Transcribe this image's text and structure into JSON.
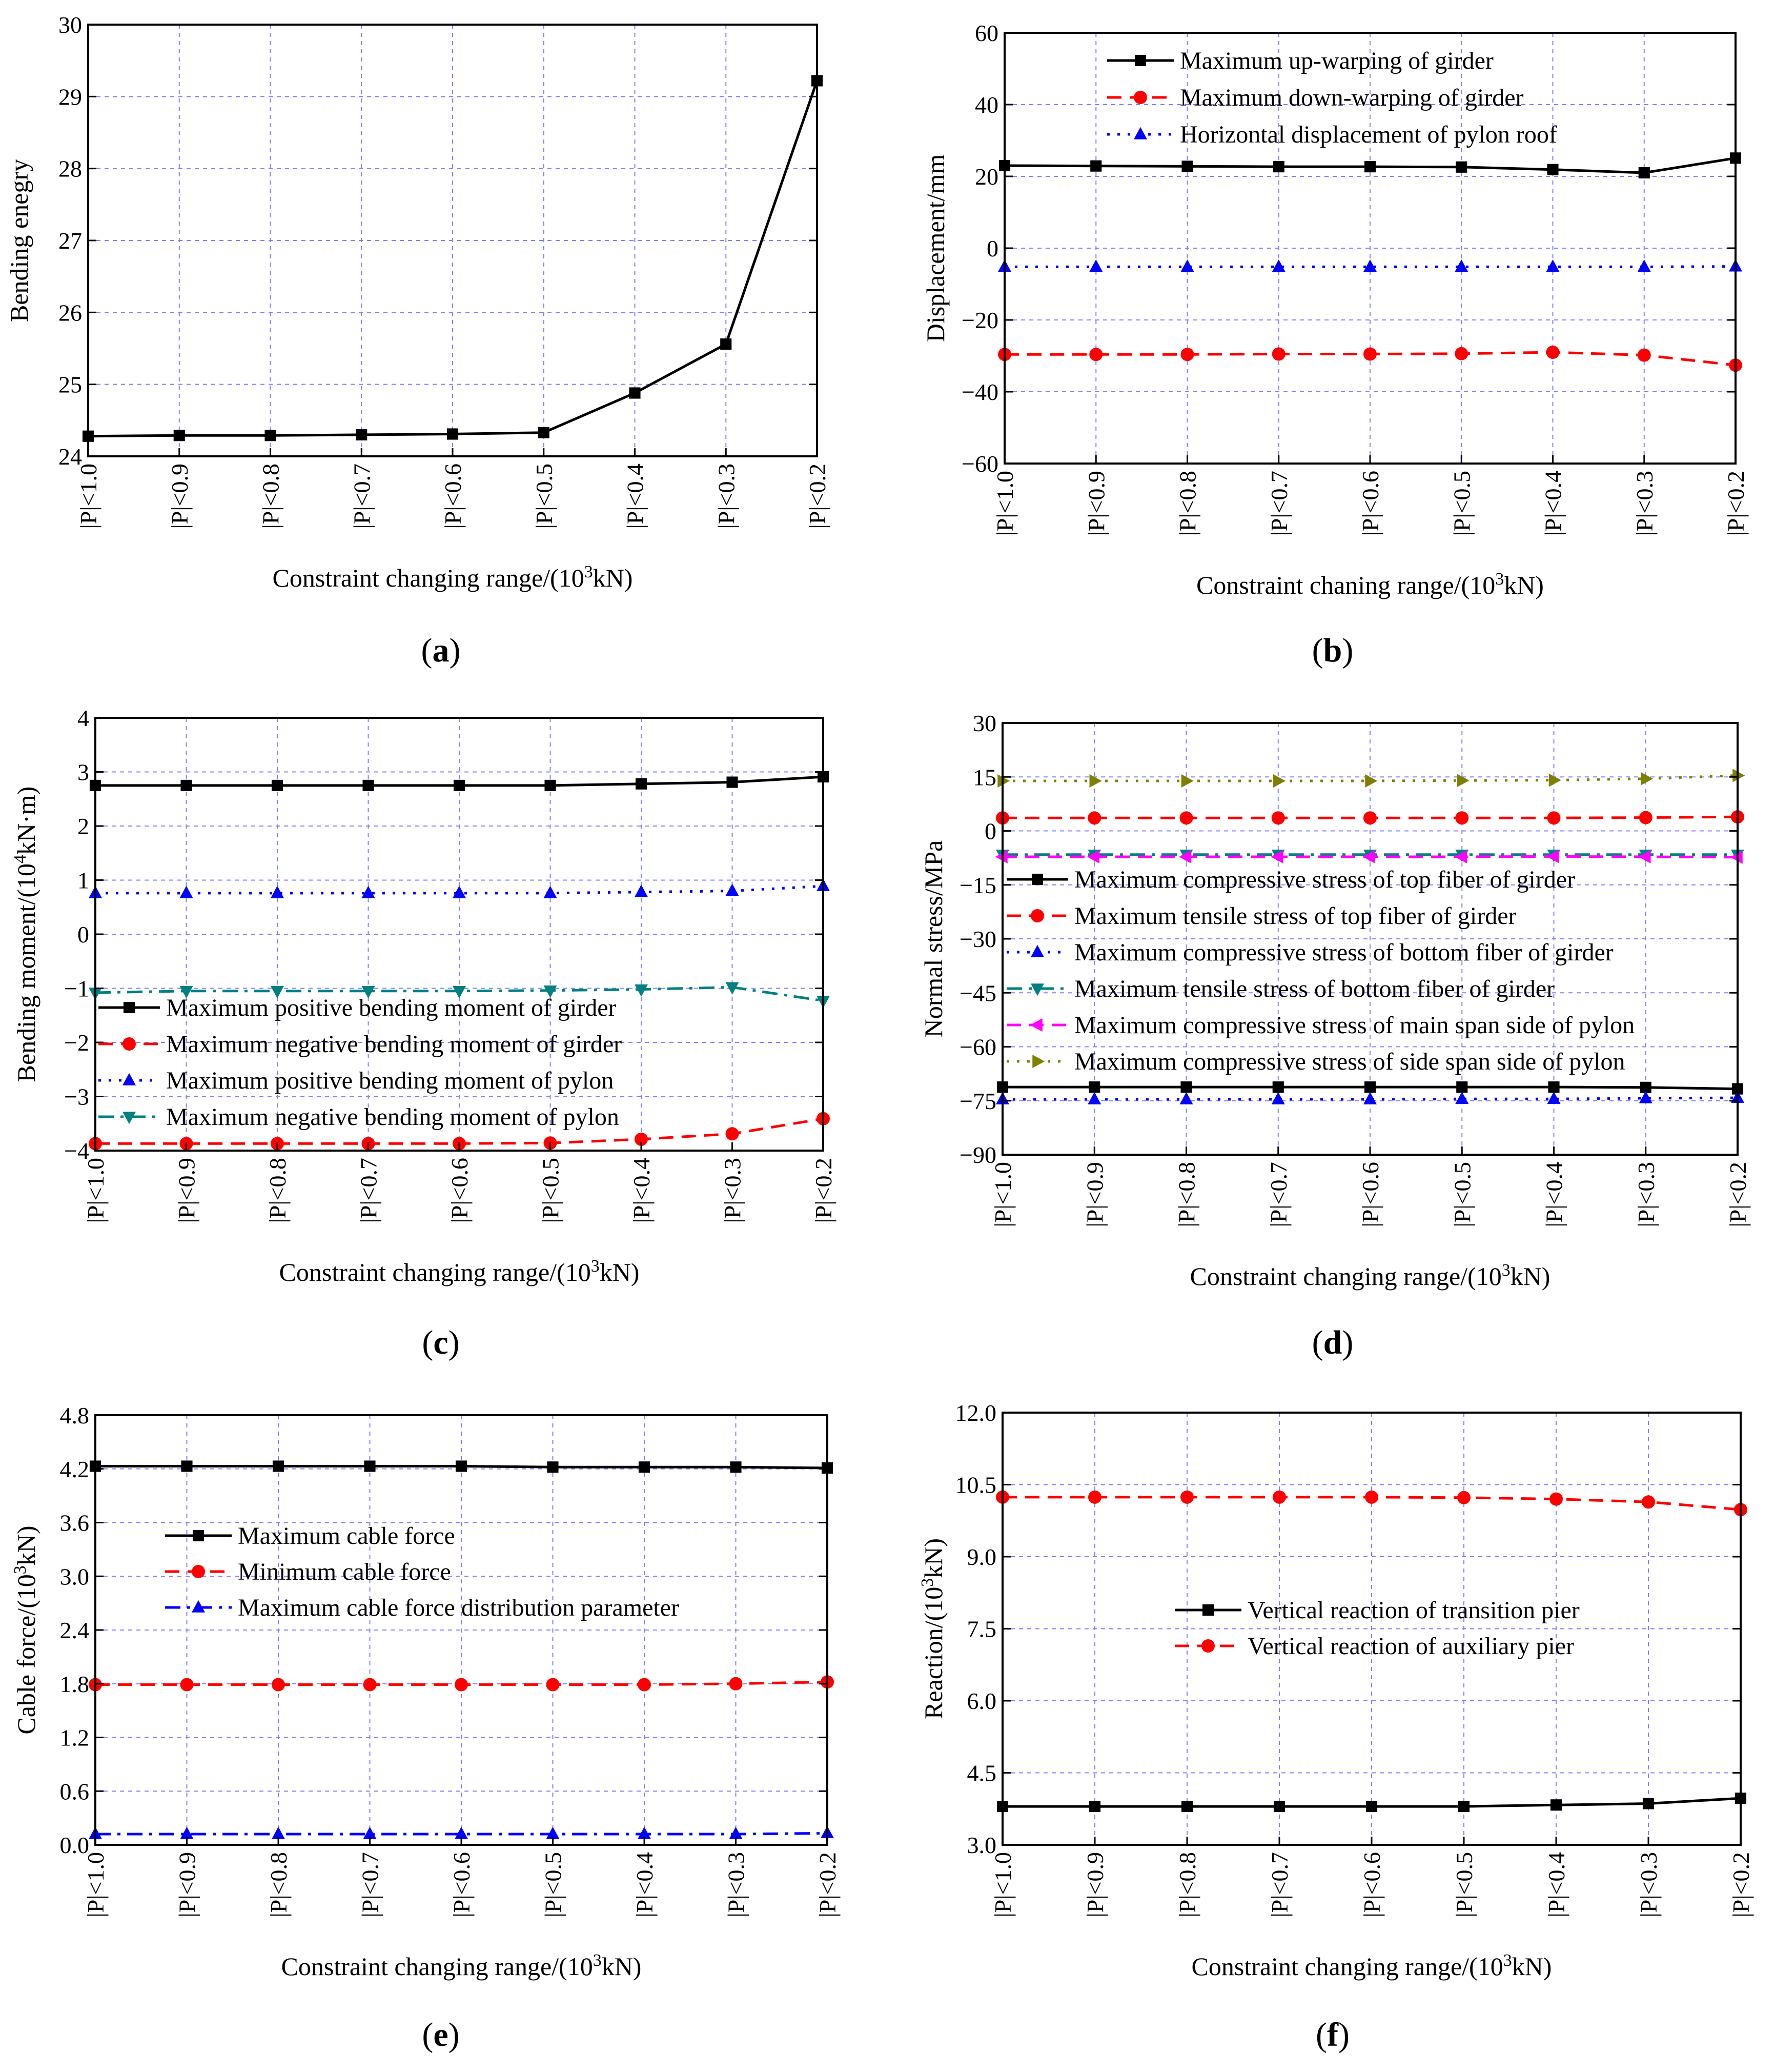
{
  "chart_data": [
    {
      "id": "a",
      "type": "line",
      "panel_label": "(a)",
      "categories": [
        "|P|<1.0",
        "|P|<0.9",
        "|P|<0.8",
        "|P|<0.7",
        "|P|<0.6",
        "|P|<0.5",
        "|P|<0.4",
        "|P|<0.3",
        "|P|<0.2"
      ],
      "xlabel": "Constraint changing range/(10³kN)",
      "ylabel": "Bending enegry",
      "ylim": [
        24,
        30
      ],
      "yticks": [
        24,
        25,
        26,
        27,
        28,
        29,
        30
      ],
      "ytick_labels": [
        "24",
        "25",
        "26",
        "27",
        "28",
        "29",
        "30"
      ],
      "grid": true,
      "legend_position": "none",
      "series": [
        {
          "name": "",
          "color": "#000000",
          "dash": "solid",
          "marker": "square",
          "values": [
            24.28,
            24.29,
            24.29,
            24.3,
            24.31,
            24.33,
            24.88,
            25.56,
            29.22
          ]
        }
      ]
    },
    {
      "id": "b",
      "type": "line",
      "panel_label": "(b)",
      "categories": [
        "|P|<1.0",
        "|P|<0.9",
        "|P|<0.8",
        "|P|<0.7",
        "|P|<0.6",
        "|P|<0.5",
        "|P|<0.4",
        "|P|<0.3",
        "|P|<0.2"
      ],
      "xlabel": "Constraint chaning range/(10³kN)",
      "ylabel": "Displacement/mm",
      "ylim": [
        -60,
        60
      ],
      "yticks": [
        -60,
        -40,
        -20,
        0,
        20,
        40,
        60
      ],
      "ytick_labels": [
        "−60",
        "−40",
        "−20",
        "0",
        "20",
        "40",
        "60"
      ],
      "grid": true,
      "legend_position": "top",
      "series": [
        {
          "name": "Maximum up-warping of girder",
          "color": "#000000",
          "dash": "solid",
          "marker": "square",
          "values": [
            23.0,
            22.9,
            22.8,
            22.7,
            22.7,
            22.6,
            21.9,
            21.0,
            25.1
          ]
        },
        {
          "name": "Maximum down-warping of girder",
          "color": "#ff0000",
          "dash": "dash",
          "marker": "circle",
          "values": [
            -29.6,
            -29.6,
            -29.6,
            -29.5,
            -29.5,
            -29.4,
            -29.0,
            -29.8,
            -32.6
          ]
        },
        {
          "name": "Horizontal displacement of pylon roof",
          "color": "#0000ff",
          "dash": "dot",
          "marker": "triangle",
          "values": [
            -5.2,
            -5.2,
            -5.2,
            -5.2,
            -5.2,
            -5.2,
            -5.2,
            -5.2,
            -5.1
          ]
        }
      ]
    },
    {
      "id": "c",
      "type": "line",
      "panel_label": "(c)",
      "categories": [
        "|P|<1.0",
        "|P|<0.9",
        "|P|<0.8",
        "|P|<0.7",
        "|P|<0.6",
        "|P|<0.5",
        "|P|<0.4",
        "|P|<0.3",
        "|P|<0.2"
      ],
      "xlabel": "Constraint changing range/(10³kN)",
      "ylabel": "Bending moment/(10⁴kN·m)",
      "ylim": [
        -4,
        4
      ],
      "yticks": [
        -4,
        -3,
        -2,
        -1,
        0,
        1,
        2,
        3,
        4
      ],
      "ytick_labels": [
        "−4",
        "−3",
        "−2",
        "−1",
        "0",
        "1",
        "2",
        "3",
        "4"
      ],
      "grid": true,
      "legend_position": "bottom-left",
      "series": [
        {
          "name": "Maximum positive bending moment of girder",
          "color": "#000000",
          "dash": "solid",
          "marker": "square",
          "values": [
            2.75,
            2.75,
            2.75,
            2.75,
            2.75,
            2.75,
            2.78,
            2.81,
            2.91
          ]
        },
        {
          "name": "Maximum negative bending moment of girder",
          "color": "#ff0000",
          "dash": "dash",
          "marker": "circle",
          "values": [
            -3.87,
            -3.87,
            -3.87,
            -3.87,
            -3.87,
            -3.86,
            -3.79,
            -3.69,
            -3.41
          ]
        },
        {
          "name": "Maximum positive bending moment of pylon",
          "color": "#0000ff",
          "dash": "dot",
          "marker": "triangle",
          "values": [
            0.76,
            0.76,
            0.76,
            0.76,
            0.76,
            0.76,
            0.78,
            0.8,
            0.89
          ]
        },
        {
          "name": "Maximum negative bending moment of pylon",
          "color": "#008080",
          "dash": "dashdot",
          "marker": "triangle-down",
          "values": [
            -1.08,
            -1.05,
            -1.05,
            -1.05,
            -1.05,
            -1.04,
            -1.02,
            -0.98,
            -1.23
          ]
        }
      ]
    },
    {
      "id": "d",
      "type": "line",
      "panel_label": "(d)",
      "categories": [
        "|P|<1.0",
        "|P|<0.9",
        "|P|<0.8",
        "|P|<0.7",
        "|P|<0.6",
        "|P|<0.5",
        "|P|<0.4",
        "|P|<0.3",
        "|P|<0.2"
      ],
      "xlabel": "Constraint changing range/(10³kN)",
      "ylabel": "Normal stress/MPa",
      "ylim": [
        -90,
        30
      ],
      "yticks": [
        -90,
        -75,
        -60,
        -45,
        -30,
        -15,
        0,
        15,
        30
      ],
      "ytick_labels": [
        "−90",
        "−75",
        "−60",
        "−45",
        "−30",
        "−15",
        "0",
        "15",
        "30"
      ],
      "grid": true,
      "legend_position": "center",
      "series": [
        {
          "name": "Maximum compressive stress of top fiber of girder",
          "color": "#000000",
          "dash": "solid",
          "marker": "square",
          "values": [
            -71.2,
            -71.2,
            -71.2,
            -71.2,
            -71.2,
            -71.2,
            -71.2,
            -71.3,
            -71.7
          ]
        },
        {
          "name": "Maximum tensile stress of top fiber of girder",
          "color": "#ff0000",
          "dash": "dash",
          "marker": "circle",
          "values": [
            3.6,
            3.6,
            3.6,
            3.6,
            3.6,
            3.6,
            3.6,
            3.7,
            3.9
          ]
        },
        {
          "name": "Maximum compressive stress of bottom fiber of girder",
          "color": "#0000ff",
          "dash": "dot",
          "marker": "triangle",
          "values": [
            -74.6,
            -74.6,
            -74.6,
            -74.6,
            -74.6,
            -74.5,
            -74.5,
            -74.3,
            -74.2
          ]
        },
        {
          "name": "Maximum tensile stress of bottom fiber of girder",
          "color": "#008080",
          "dash": "dashdot",
          "marker": "triangle-down",
          "values": [
            -6.6,
            -6.6,
            -6.6,
            -6.6,
            -6.6,
            -6.6,
            -6.6,
            -6.6,
            -6.6
          ]
        },
        {
          "name": "Maximum compressive stress of main span side of pylon",
          "color": "#ff00ff",
          "dash": "dash",
          "marker": "triangle-left",
          "values": [
            -7.2,
            -7.2,
            -7.2,
            -7.2,
            -7.2,
            -7.2,
            -7.1,
            -7.2,
            -7.3
          ]
        },
        {
          "name": "Maximum compressive stress of side span side of pylon",
          "color": "#808000",
          "dash": "dot",
          "marker": "triangle-right",
          "values": [
            13.9,
            13.9,
            13.9,
            13.9,
            13.9,
            14.0,
            14.1,
            14.5,
            15.4
          ]
        }
      ]
    },
    {
      "id": "e",
      "type": "line",
      "panel_label": "(e)",
      "categories": [
        "|P|<1.0",
        "|P|<0.9",
        "|P|<0.8",
        "|P|<0.7",
        "|P|<0.6",
        "|P|<0.5",
        "|P|<0.4",
        "|P|<0.3",
        "|P|<0.2"
      ],
      "xlabel": "Constraint changing range/(10³kN)",
      "ylabel": "Cable force/(10³kN)",
      "ylim": [
        0,
        4.8
      ],
      "yticks": [
        0,
        0.6,
        1.2,
        1.8,
        2.4,
        3.0,
        3.6,
        4.2,
        4.8
      ],
      "ytick_labels": [
        "0.0",
        "0.6",
        "1.2",
        "1.8",
        "2.4",
        "3.0",
        "3.6",
        "4.2",
        "4.8"
      ],
      "grid": true,
      "legend_position": "center-left",
      "series": [
        {
          "name": "Maximum cable force",
          "color": "#000000",
          "dash": "solid",
          "marker": "square",
          "values": [
            4.23,
            4.23,
            4.23,
            4.23,
            4.23,
            4.22,
            4.22,
            4.22,
            4.21
          ]
        },
        {
          "name": "Minimum cable force",
          "color": "#ff0000",
          "dash": "dash",
          "marker": "circle",
          "values": [
            1.79,
            1.79,
            1.79,
            1.79,
            1.79,
            1.79,
            1.79,
            1.8,
            1.82
          ]
        },
        {
          "name": "Maximum cable force distribution parameter",
          "color": "#0000ff",
          "dash": "dashdot",
          "marker": "triangle",
          "values": [
            0.12,
            0.12,
            0.12,
            0.12,
            0.12,
            0.12,
            0.12,
            0.12,
            0.13
          ]
        }
      ]
    },
    {
      "id": "f",
      "type": "line",
      "panel_label": "(f)",
      "categories": [
        "|P|<1.0",
        "|P|<0.9",
        "|P|<0.8",
        "|P|<0.7",
        "|P|<0.6",
        "|P|<0.5",
        "|P|<0.4",
        "|P|<0.3",
        "|P|<0.2"
      ],
      "xlabel": "Constraint changing range/(10³kN)",
      "ylabel": "Reaction/(10³kN)",
      "ylim": [
        3.0,
        12.0
      ],
      "yticks": [
        3.0,
        4.5,
        6.0,
        7.5,
        9.0,
        10.5,
        12.0
      ],
      "ytick_labels": [
        "3.0",
        "4.5",
        "6.0",
        "7.5",
        "9.0",
        "10.5",
        "12.0"
      ],
      "grid": true,
      "legend_position": "center-right",
      "series": [
        {
          "name": "Vertical reaction of transition pier",
          "color": "#000000",
          "dash": "solid",
          "marker": "square",
          "values": [
            3.8,
            3.8,
            3.8,
            3.8,
            3.8,
            3.8,
            3.83,
            3.86,
            3.97
          ]
        },
        {
          "name": "Vertical reaction of auxiliary pier",
          "color": "#ff0000",
          "dash": "dash",
          "marker": "circle",
          "values": [
            10.24,
            10.24,
            10.24,
            10.24,
            10.24,
            10.23,
            10.2,
            10.14,
            9.98
          ]
        }
      ]
    }
  ]
}
